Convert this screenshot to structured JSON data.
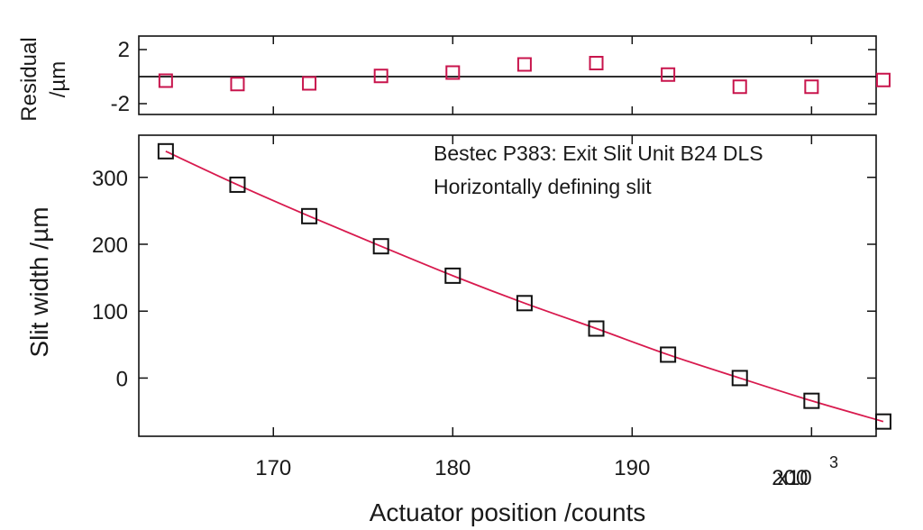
{
  "chart_data": [
    {
      "type": "scatter",
      "panel": "residuals",
      "ylabel_lines": [
        "Residual",
        "/µm"
      ],
      "xlim": [
        162.5,
        203.6
      ],
      "ylim": [
        -2.8,
        3.0
      ],
      "yticks": [
        2,
        -2
      ],
      "zero_line": true,
      "marker": "open-square",
      "marker_color": "#c8144c",
      "series": [
        {
          "x": [
            164,
            168,
            172,
            176,
            180,
            184,
            188,
            192,
            196,
            200,
            204
          ],
          "y": [
            -0.3,
            -0.55,
            -0.5,
            0.05,
            0.3,
            0.9,
            1.0,
            0.15,
            -0.75,
            -0.75,
            -0.25
          ]
        }
      ]
    },
    {
      "type": "scatter",
      "panel": "main",
      "xlabel": "Actuator position /counts",
      "ylabel": "Slit width /µm",
      "x_scale_label": "x10",
      "x_scale_exp": "3",
      "xlim": [
        162.5,
        203.6
      ],
      "ylim": [
        -87,
        363
      ],
      "xticks": [
        170,
        180,
        190,
        200
      ],
      "yticks": [
        300,
        200,
        100,
        0
      ],
      "annotation": [
        "Bestec P383: Exit Slit Unit B24 DLS",
        "Horizontally defining slit"
      ],
      "marker": "open-square",
      "marker_color": "#111111",
      "fit_color": "#d81a4e",
      "series": [
        {
          "x": [
            164,
            168,
            172,
            176,
            180,
            184,
            188,
            192,
            196,
            200,
            204
          ],
          "y": [
            339,
            289,
            242,
            197,
            153,
            112,
            74,
            35,
            0,
            -34,
            -65
          ]
        }
      ]
    }
  ]
}
